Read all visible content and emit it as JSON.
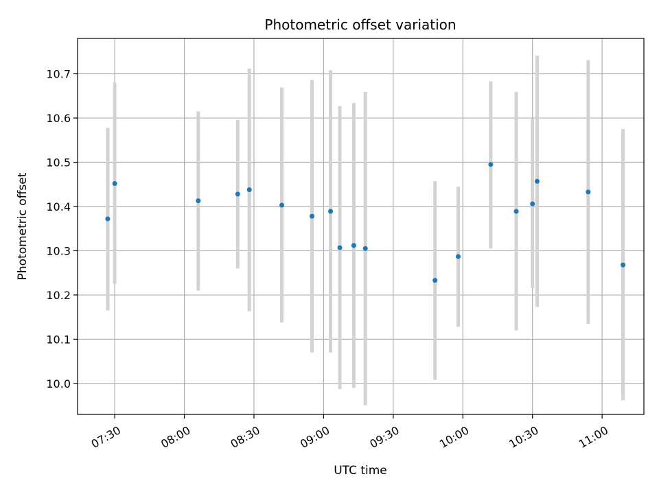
{
  "chart_data": {
    "type": "scatter",
    "title": "Photometric offset variation",
    "xlabel": "UTC time",
    "ylabel": "Photometric offset",
    "x_unit": "UTC",
    "xlim": [
      "07:14",
      "11:18"
    ],
    "ylim": [
      9.93,
      10.78
    ],
    "x_ticks": [
      "07:30",
      "08:00",
      "08:30",
      "09:00",
      "09:30",
      "10:00",
      "10:30",
      "11:00"
    ],
    "y_ticks": [
      10.0,
      10.1,
      10.2,
      10.3,
      10.4,
      10.5,
      10.6,
      10.7
    ],
    "grid": true,
    "colors": {
      "point": "#1f77b4",
      "errorbar": "#d3d3d3",
      "grid": "#b0b0b0"
    },
    "series": [
      {
        "points": [
          {
            "x": "07:27",
            "y": 10.372,
            "ylo": 10.165,
            "yhi": 10.578
          },
          {
            "x": "07:30",
            "y": 10.452,
            "ylo": 10.225,
            "yhi": 10.68
          },
          {
            "x": "08:06",
            "y": 10.413,
            "ylo": 10.21,
            "yhi": 10.615
          },
          {
            "x": "08:23",
            "y": 10.428,
            "ylo": 10.26,
            "yhi": 10.596
          },
          {
            "x": "08:28",
            "y": 10.438,
            "ylo": 10.163,
            "yhi": 10.712
          },
          {
            "x": "08:42",
            "y": 10.403,
            "ylo": 10.138,
            "yhi": 10.669
          },
          {
            "x": "08:55",
            "y": 10.378,
            "ylo": 10.07,
            "yhi": 10.686
          },
          {
            "x": "09:03",
            "y": 10.389,
            "ylo": 10.07,
            "yhi": 10.708
          },
          {
            "x": "09:07",
            "y": 10.307,
            "ylo": 9.987,
            "yhi": 10.627
          },
          {
            "x": "09:13",
            "y": 10.312,
            "ylo": 9.99,
            "yhi": 10.634
          },
          {
            "x": "09:18",
            "y": 10.305,
            "ylo": 9.951,
            "yhi": 10.659
          },
          {
            "x": "09:48",
            "y": 10.233,
            "ylo": 10.008,
            "yhi": 10.457
          },
          {
            "x": "09:58",
            "y": 10.287,
            "ylo": 10.128,
            "yhi": 10.445
          },
          {
            "x": "10:12",
            "y": 10.495,
            "ylo": 10.305,
            "yhi": 10.683
          },
          {
            "x": "10:23",
            "y": 10.389,
            "ylo": 10.12,
            "yhi": 10.659
          },
          {
            "x": "10:30",
            "y": 10.406,
            "ylo": 10.215,
            "yhi": 10.598
          },
          {
            "x": "10:32",
            "y": 10.457,
            "ylo": 10.173,
            "yhi": 10.741
          },
          {
            "x": "10:54",
            "y": 10.433,
            "ylo": 10.135,
            "yhi": 10.731
          },
          {
            "x": "11:09",
            "y": 10.268,
            "ylo": 9.962,
            "yhi": 10.575
          }
        ]
      }
    ]
  }
}
